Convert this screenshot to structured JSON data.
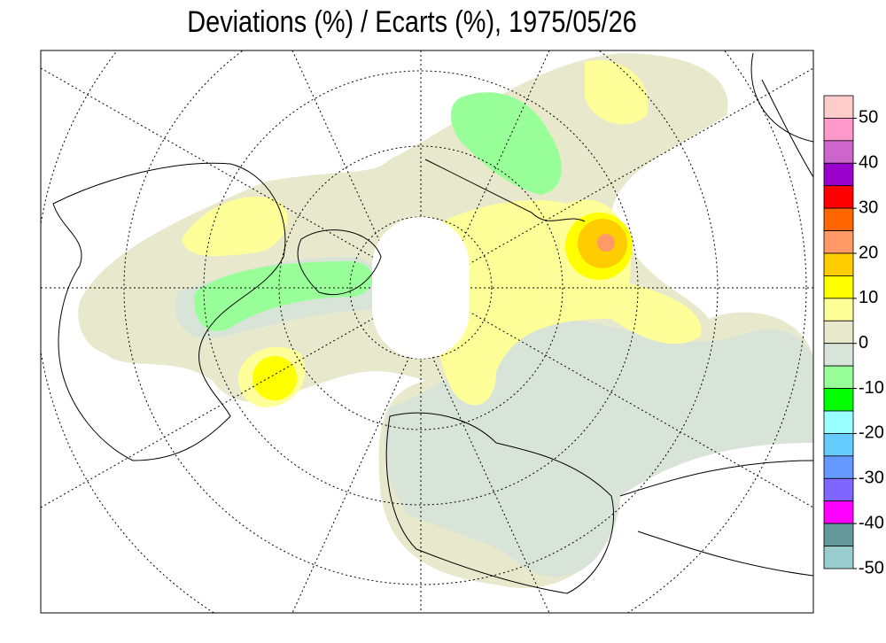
{
  "title": "Deviations (%) / Ecarts (%), 1975/05/26",
  "colorbar": {
    "range": [
      -50,
      55
    ],
    "colors": [
      "#ffcccc",
      "#ff99cc",
      "#cc66cc",
      "#9900cc",
      "#ff0000",
      "#ff6600",
      "#ff9966",
      "#ffcc00",
      "#ffff00",
      "#ffff99",
      "#e8e8cc",
      "#d8e4d8",
      "#99ff99",
      "#00ff00",
      "#99ffff",
      "#66ccff",
      "#6699ff",
      "#7f66ff",
      "#ff00ff",
      "#669999",
      "#99cccc"
    ],
    "ticks": [
      50,
      40,
      30,
      20,
      10,
      0,
      -10,
      -20,
      -30,
      -40,
      -50
    ]
  }
}
